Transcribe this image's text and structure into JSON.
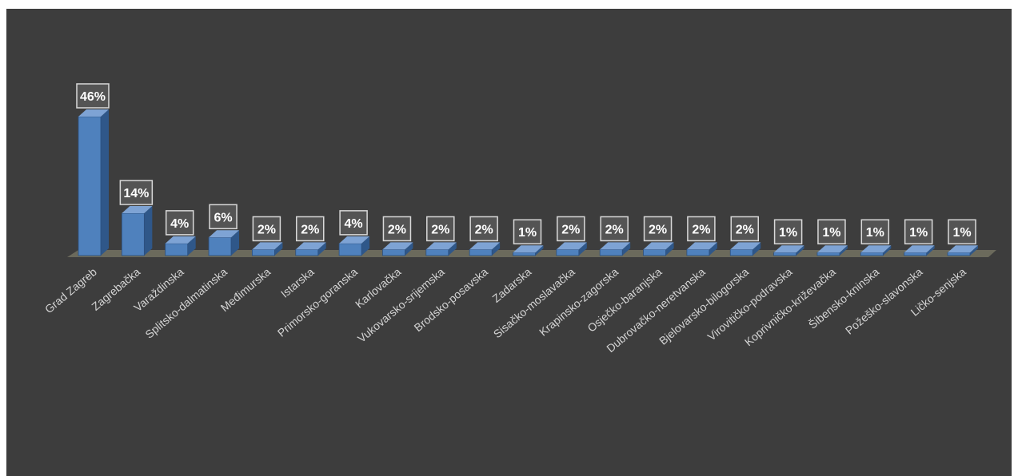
{
  "chart_data": {
    "type": "bar",
    "title": "",
    "xlabel": "",
    "ylabel": "",
    "categories": [
      "Grad Zagreb",
      "Zagrebačka",
      "Varaždinska",
      "Splitsko-dalmatinska",
      "Međimurska",
      "Istarska",
      "Primorsko-goranska",
      "Karlovačka",
      "Vukovarsko-srijemska",
      "Brodsko-posavska",
      "Zadarska",
      "Sisačko-moslavačka",
      "Krapinsko-zagorska",
      "Osječko-baranjska",
      "Dubrovačko-neretvanska",
      "Bjelovarsko-bilogorska",
      "Virovitičko-podravska",
      "Koprivničko-križevačka",
      "Šibensko-kninska",
      "Požeško-slavonska",
      "Ličko-senjska"
    ],
    "values": [
      46,
      14,
      4,
      6,
      2,
      2,
      4,
      2,
      2,
      2,
      1,
      2,
      2,
      2,
      2,
      2,
      1,
      1,
      1,
      1,
      1
    ],
    "data_labels": [
      "46%",
      "14%",
      "4%",
      "6%",
      "2%",
      "2%",
      "4%",
      "2%",
      "2%",
      "2%",
      "1%",
      "2%",
      "2%",
      "2%",
      "2%",
      "2%",
      "1%",
      "1%",
      "1%",
      "1%",
      "1%"
    ],
    "ylim": [
      0,
      46
    ],
    "grid": false,
    "legend": "none",
    "bar_style": "3d-column",
    "colors": {
      "background": "#3d3d3d",
      "bar_front": "#4f81bd",
      "bar_side": "#2f5789",
      "bar_top": "#7ea3d4",
      "floor": "#6b6a5c",
      "label_box_fill": "#545454",
      "label_box_stroke": "#d9d9d9"
    }
  }
}
